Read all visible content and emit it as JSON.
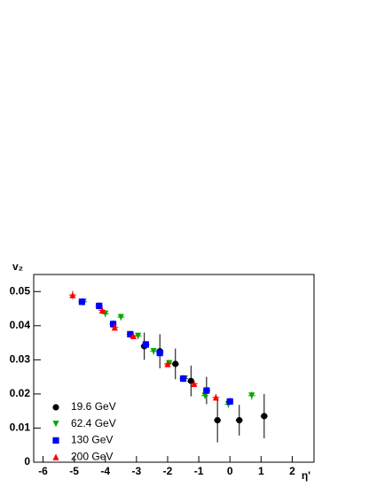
{
  "chart_data": {
    "type": "scatter",
    "y_label": "v₂",
    "x_label": "η'",
    "xlim": [
      -6.3,
      2.7
    ],
    "ylim": [
      0,
      0.055
    ],
    "xticks": [
      -6,
      -5,
      -4,
      -3,
      -2,
      -1,
      0,
      1,
      2
    ],
    "yticks": [
      0,
      0.01,
      0.02,
      0.03,
      0.04,
      0.05
    ],
    "legend": "lower left",
    "series": [
      {
        "name": "19.6 GeV",
        "color": "#000000",
        "marker": "circle",
        "x": [
          -2.75,
          -2.25,
          -1.75,
          -1.25,
          -0.75,
          -0.4,
          0.3,
          1.1
        ],
        "values": [
          0.034,
          0.0325,
          0.0288,
          0.0238,
          0.021,
          0.0123,
          0.0123,
          0.0135
        ],
        "errors": [
          0.004,
          0.005,
          0.0045,
          0.0045,
          0.004,
          0.0065,
          0.0045,
          0.0065
        ]
      },
      {
        "name": "62.4 GeV",
        "color": "#00aa00",
        "marker": "triangle-down",
        "x": [
          -4.7,
          -4.0,
          -3.5,
          -2.95,
          -2.45,
          -1.95,
          -1.45,
          -0.8,
          -0.05,
          0.7
        ],
        "values": [
          0.047,
          0.0435,
          0.0425,
          0.037,
          0.0325,
          0.029,
          0.0245,
          0.0195,
          0.017,
          0.0195
        ],
        "errors": [
          0.001,
          0.001,
          0.001,
          0.001,
          0.001,
          0.001,
          0.001,
          0.001,
          0.001,
          0.0012
        ]
      },
      {
        "name": "130 GeV",
        "color": "#0000ff",
        "marker": "square",
        "x": [
          -4.75,
          -4.2,
          -3.75,
          -3.2,
          -2.7,
          -2.25,
          -1.5,
          -0.75,
          0
        ],
        "values": [
          0.047,
          0.0458,
          0.0405,
          0.0375,
          0.0345,
          0.032,
          0.0245,
          0.021,
          0.0178
        ],
        "errors": [
          0.001,
          0.001,
          0.001,
          0.001,
          0.001,
          0.001,
          0.001,
          0.001,
          0.001
        ]
      },
      {
        "name": "200 GeV",
        "color": "#ff0000",
        "marker": "triangle-up",
        "x": [
          -5.05,
          -4.1,
          -3.7,
          -3.1,
          -2.0,
          -1.15,
          -0.45
        ],
        "values": [
          0.049,
          0.0445,
          0.0395,
          0.037,
          0.0288,
          0.023,
          0.019
        ],
        "errors": [
          0.0012,
          0.001,
          0.001,
          0.001,
          0.001,
          0.001,
          0.001
        ]
      }
    ]
  }
}
